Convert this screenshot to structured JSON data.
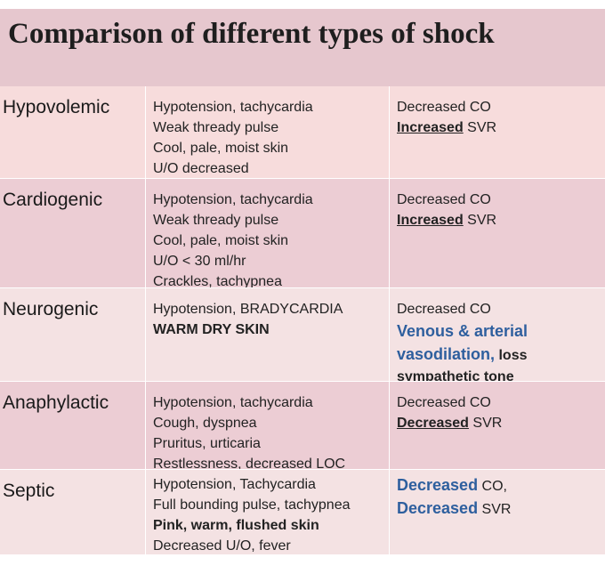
{
  "title": "Comparison of different types of shock",
  "rows": [
    {
      "type": "Hypovolemic",
      "signs": [
        [
          "Hypotension, tachycardia"
        ],
        [
          "Weak thready pulse"
        ],
        [
          "Cool, pale, moist skin"
        ],
        [
          "U/O decreased"
        ]
      ],
      "hemodynamics": [
        [
          "Decreased CO"
        ],
        [
          "Increased",
          " SVR"
        ]
      ]
    },
    {
      "type": "Cardiogenic",
      "signs": [
        [
          "Hypotension, tachycardia"
        ],
        [
          "Weak thready pulse"
        ],
        [
          "Cool, pale, moist skin"
        ],
        [
          "U/O < 30 ml/hr"
        ],
        [
          "Crackles, tachypnea"
        ]
      ],
      "hemodynamics": [
        [
          "Decreased CO"
        ],
        [
          "Increased",
          " SVR"
        ]
      ]
    },
    {
      "type": "Neurogenic",
      "signs": [
        [
          "Hypotension, BRADYCARDIA"
        ],
        [
          "WARM DRY SKIN"
        ]
      ],
      "hemodynamics": [
        [
          "Decreased CO"
        ],
        [
          "Venous & arterial"
        ],
        [
          "vasodilation,",
          " loss"
        ],
        [
          "sympathetic tone"
        ]
      ]
    },
    {
      "type": "Anaphylactic",
      "signs": [
        [
          "Hypotension, tachycardia"
        ],
        [
          "Cough, dyspnea"
        ],
        [
          "Pruritus, urticaria"
        ],
        [
          "Restlessness, decreased LOC"
        ]
      ],
      "hemodynamics": [
        [
          "Decreased CO"
        ],
        [
          "Decreased",
          " SVR"
        ]
      ]
    },
    {
      "type": "Septic",
      "signs": [
        [
          "Hypotension, Tachycardia"
        ],
        [
          "Full bounding pulse, tachypnea"
        ],
        [
          "Pink, warm, flushed skin"
        ],
        [
          "Decreased U/O, fever"
        ]
      ],
      "hemodynamics": [
        [
          "Decreased",
          " CO,"
        ],
        [
          "Decreased",
          " SVR"
        ]
      ]
    }
  ]
}
